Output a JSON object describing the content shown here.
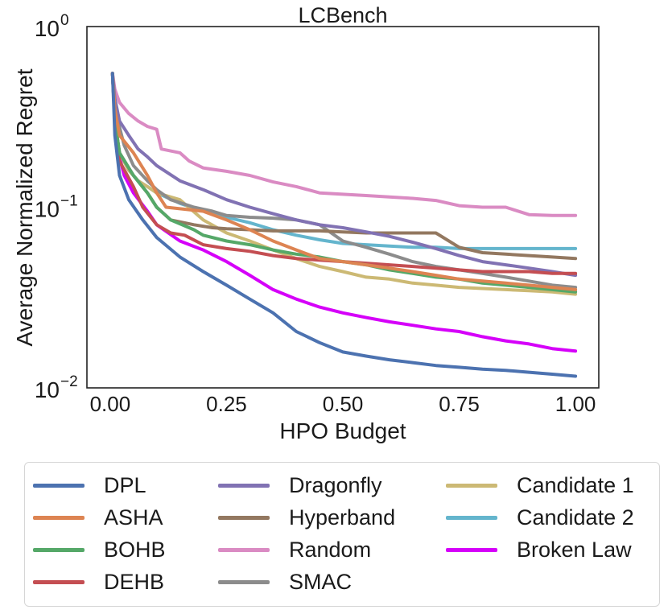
{
  "chart_data": {
    "type": "line",
    "title": "LCBench",
    "xlabel": "HPO Budget",
    "ylabel": "Average Normalized Regret",
    "xlim": [
      -0.05,
      1.05
    ],
    "ylim": [
      0.01,
      1
    ],
    "yscale": "log",
    "xticks": [
      0.0,
      0.25,
      0.5,
      0.75,
      1.0
    ],
    "xtick_labels": [
      "0.00",
      "0.25",
      "0.50",
      "0.75",
      "1.00"
    ],
    "ytick_labels": [
      {
        "value": 1,
        "base": "10",
        "exp": "0"
      },
      {
        "value": 0.1,
        "base": "10",
        "exp": "−1"
      },
      {
        "value": 0.01,
        "base": "10",
        "exp": "−2"
      }
    ],
    "grid": false,
    "legend_position": "below",
    "series": [
      {
        "name": "DPL",
        "color": "#4C72B0",
        "points": [
          [
            0.005,
            0.55
          ],
          [
            0.01,
            0.25
          ],
          [
            0.02,
            0.15
          ],
          [
            0.04,
            0.11
          ],
          [
            0.07,
            0.085
          ],
          [
            0.1,
            0.068
          ],
          [
            0.15,
            0.053
          ],
          [
            0.2,
            0.044
          ],
          [
            0.25,
            0.037
          ],
          [
            0.3,
            0.031
          ],
          [
            0.35,
            0.026
          ],
          [
            0.4,
            0.0205
          ],
          [
            0.45,
            0.0178
          ],
          [
            0.5,
            0.0158
          ],
          [
            0.55,
            0.015
          ],
          [
            0.6,
            0.0143
          ],
          [
            0.65,
            0.0138
          ],
          [
            0.7,
            0.0133
          ],
          [
            0.75,
            0.013
          ],
          [
            0.8,
            0.0127
          ],
          [
            0.85,
            0.0125
          ],
          [
            0.9,
            0.0122
          ],
          [
            0.95,
            0.0119
          ],
          [
            1.0,
            0.0116
          ]
        ]
      },
      {
        "name": "ASHA",
        "color": "#DD8452",
        "points": [
          [
            0.005,
            0.55
          ],
          [
            0.01,
            0.35
          ],
          [
            0.02,
            0.25
          ],
          [
            0.05,
            0.2
          ],
          [
            0.08,
            0.15
          ],
          [
            0.1,
            0.12
          ],
          [
            0.12,
            0.1
          ],
          [
            0.2,
            0.095
          ],
          [
            0.25,
            0.085
          ],
          [
            0.3,
            0.075
          ],
          [
            0.35,
            0.065
          ],
          [
            0.4,
            0.058
          ],
          [
            0.45,
            0.052
          ],
          [
            0.5,
            0.05
          ],
          [
            0.55,
            0.048
          ],
          [
            0.6,
            0.046
          ],
          [
            0.65,
            0.044
          ],
          [
            0.7,
            0.042
          ],
          [
            0.75,
            0.04
          ],
          [
            0.8,
            0.039
          ],
          [
            0.85,
            0.038
          ],
          [
            0.9,
            0.037
          ],
          [
            0.95,
            0.036
          ],
          [
            1.0,
            0.035
          ]
        ]
      },
      {
        "name": "BOHB",
        "color": "#55A868",
        "points": [
          [
            0.005,
            0.55
          ],
          [
            0.01,
            0.3
          ],
          [
            0.02,
            0.2
          ],
          [
            0.05,
            0.15
          ],
          [
            0.08,
            0.12
          ],
          [
            0.1,
            0.1
          ],
          [
            0.13,
            0.085
          ],
          [
            0.18,
            0.075
          ],
          [
            0.2,
            0.07
          ],
          [
            0.25,
            0.065
          ],
          [
            0.3,
            0.062
          ],
          [
            0.35,
            0.058
          ],
          [
            0.4,
            0.055
          ],
          [
            0.45,
            0.053
          ],
          [
            0.5,
            0.05
          ],
          [
            0.55,
            0.048
          ],
          [
            0.6,
            0.045
          ],
          [
            0.65,
            0.043
          ],
          [
            0.7,
            0.041
          ],
          [
            0.75,
            0.04
          ],
          [
            0.8,
            0.038
          ],
          [
            0.85,
            0.037
          ],
          [
            0.9,
            0.036
          ],
          [
            0.95,
            0.035
          ],
          [
            1.0,
            0.034
          ]
        ]
      },
      {
        "name": "DEHB",
        "color": "#C44E52",
        "points": [
          [
            0.005,
            0.55
          ],
          [
            0.01,
            0.3
          ],
          [
            0.02,
            0.18
          ],
          [
            0.05,
            0.13
          ],
          [
            0.07,
            0.1
          ],
          [
            0.1,
            0.08
          ],
          [
            0.13,
            0.072
          ],
          [
            0.16,
            0.07
          ],
          [
            0.2,
            0.062
          ],
          [
            0.25,
            0.059
          ],
          [
            0.3,
            0.057
          ],
          [
            0.35,
            0.054
          ],
          [
            0.4,
            0.052
          ],
          [
            0.45,
            0.051
          ],
          [
            0.5,
            0.05
          ],
          [
            0.55,
            0.049
          ],
          [
            0.6,
            0.048
          ],
          [
            0.65,
            0.047
          ],
          [
            0.7,
            0.046
          ],
          [
            0.75,
            0.045
          ],
          [
            0.8,
            0.044
          ],
          [
            0.85,
            0.044
          ],
          [
            0.9,
            0.044
          ],
          [
            0.95,
            0.043
          ],
          [
            1.0,
            0.043
          ]
        ]
      },
      {
        "name": "Dragonfly",
        "color": "#8172B3",
        "points": [
          [
            0.005,
            0.55
          ],
          [
            0.01,
            0.4
          ],
          [
            0.02,
            0.3
          ],
          [
            0.04,
            0.25
          ],
          [
            0.06,
            0.21
          ],
          [
            0.08,
            0.19
          ],
          [
            0.1,
            0.17
          ],
          [
            0.15,
            0.14
          ],
          [
            0.2,
            0.125
          ],
          [
            0.25,
            0.11
          ],
          [
            0.3,
            0.1
          ],
          [
            0.35,
            0.092
          ],
          [
            0.4,
            0.085
          ],
          [
            0.45,
            0.08
          ],
          [
            0.5,
            0.077
          ],
          [
            0.55,
            0.073
          ],
          [
            0.6,
            0.069
          ],
          [
            0.65,
            0.064
          ],
          [
            0.7,
            0.059
          ],
          [
            0.75,
            0.054
          ],
          [
            0.8,
            0.05
          ],
          [
            0.85,
            0.048
          ],
          [
            0.9,
            0.046
          ],
          [
            0.95,
            0.044
          ],
          [
            1.0,
            0.042
          ]
        ]
      },
      {
        "name": "Hyperband",
        "color": "#937860",
        "points": [
          [
            0.005,
            0.55
          ],
          [
            0.01,
            0.3
          ],
          [
            0.02,
            0.2
          ],
          [
            0.05,
            0.15
          ],
          [
            0.08,
            0.12
          ],
          [
            0.1,
            0.1
          ],
          [
            0.13,
            0.085
          ],
          [
            0.18,
            0.08
          ],
          [
            0.22,
            0.077
          ],
          [
            0.25,
            0.076
          ],
          [
            0.3,
            0.075
          ],
          [
            0.35,
            0.074
          ],
          [
            0.4,
            0.074
          ],
          [
            0.45,
            0.074
          ],
          [
            0.5,
            0.073
          ],
          [
            0.55,
            0.072
          ],
          [
            0.6,
            0.072
          ],
          [
            0.65,
            0.072
          ],
          [
            0.7,
            0.072
          ],
          [
            0.75,
            0.06
          ],
          [
            0.8,
            0.056
          ],
          [
            0.85,
            0.055
          ],
          [
            0.9,
            0.054
          ],
          [
            0.95,
            0.053
          ],
          [
            1.0,
            0.052
          ]
        ]
      },
      {
        "name": "Random",
        "color": "#DA8BC3",
        "points": [
          [
            0.005,
            0.55
          ],
          [
            0.01,
            0.45
          ],
          [
            0.02,
            0.38
          ],
          [
            0.04,
            0.33
          ],
          [
            0.06,
            0.3
          ],
          [
            0.08,
            0.28
          ],
          [
            0.1,
            0.27
          ],
          [
            0.11,
            0.21
          ],
          [
            0.15,
            0.2
          ],
          [
            0.17,
            0.18
          ],
          [
            0.2,
            0.165
          ],
          [
            0.25,
            0.158
          ],
          [
            0.3,
            0.15
          ],
          [
            0.35,
            0.138
          ],
          [
            0.4,
            0.13
          ],
          [
            0.45,
            0.12
          ],
          [
            0.5,
            0.118
          ],
          [
            0.55,
            0.116
          ],
          [
            0.6,
            0.114
          ],
          [
            0.65,
            0.112
          ],
          [
            0.7,
            0.109
          ],
          [
            0.75,
            0.102
          ],
          [
            0.8,
            0.1
          ],
          [
            0.85,
            0.1
          ],
          [
            0.9,
            0.091
          ],
          [
            0.95,
            0.09
          ],
          [
            1.0,
            0.09
          ]
        ]
      },
      {
        "name": "SMAC",
        "color": "#8C8C8C",
        "points": [
          [
            0.005,
            0.55
          ],
          [
            0.01,
            0.35
          ],
          [
            0.03,
            0.22
          ],
          [
            0.05,
            0.17
          ],
          [
            0.08,
            0.14
          ],
          [
            0.1,
            0.125
          ],
          [
            0.13,
            0.11
          ],
          [
            0.18,
            0.1
          ],
          [
            0.22,
            0.095
          ],
          [
            0.25,
            0.09
          ],
          [
            0.3,
            0.088
          ],
          [
            0.35,
            0.087
          ],
          [
            0.4,
            0.085
          ],
          [
            0.45,
            0.08
          ],
          [
            0.5,
            0.065
          ],
          [
            0.55,
            0.06
          ],
          [
            0.6,
            0.055
          ],
          [
            0.65,
            0.05
          ],
          [
            0.7,
            0.047
          ],
          [
            0.75,
            0.045
          ],
          [
            0.8,
            0.043
          ],
          [
            0.85,
            0.041
          ],
          [
            0.9,
            0.039
          ],
          [
            0.95,
            0.037
          ],
          [
            1.0,
            0.036
          ]
        ]
      },
      {
        "name": "Candidate 1",
        "color": "#CCB974",
        "points": [
          [
            0.005,
            0.55
          ],
          [
            0.01,
            0.3
          ],
          [
            0.02,
            0.2
          ],
          [
            0.04,
            0.16
          ],
          [
            0.06,
            0.14
          ],
          [
            0.08,
            0.13
          ],
          [
            0.1,
            0.12
          ],
          [
            0.15,
            0.11
          ],
          [
            0.2,
            0.085
          ],
          [
            0.25,
            0.072
          ],
          [
            0.3,
            0.065
          ],
          [
            0.35,
            0.058
          ],
          [
            0.4,
            0.052
          ],
          [
            0.45,
            0.047
          ],
          [
            0.5,
            0.044
          ],
          [
            0.55,
            0.041
          ],
          [
            0.6,
            0.04
          ],
          [
            0.65,
            0.038
          ],
          [
            0.7,
            0.037
          ],
          [
            0.75,
            0.036
          ],
          [
            0.8,
            0.0355
          ],
          [
            0.85,
            0.035
          ],
          [
            0.9,
            0.0345
          ],
          [
            0.95,
            0.034
          ],
          [
            1.0,
            0.033
          ]
        ]
      },
      {
        "name": "Candidate 2",
        "color": "#64B5CD",
        "points": [
          [
            0.005,
            0.55
          ],
          [
            0.01,
            0.3
          ],
          [
            0.02,
            0.2
          ],
          [
            0.04,
            0.16
          ],
          [
            0.06,
            0.14
          ],
          [
            0.08,
            0.13
          ],
          [
            0.1,
            0.12
          ],
          [
            0.15,
            0.105
          ],
          [
            0.2,
            0.095
          ],
          [
            0.25,
            0.088
          ],
          [
            0.3,
            0.082
          ],
          [
            0.35,
            0.075
          ],
          [
            0.4,
            0.07
          ],
          [
            0.45,
            0.066
          ],
          [
            0.5,
            0.063
          ],
          [
            0.55,
            0.062
          ],
          [
            0.6,
            0.061
          ],
          [
            0.65,
            0.06
          ],
          [
            0.7,
            0.06
          ],
          [
            0.75,
            0.059
          ],
          [
            0.8,
            0.059
          ],
          [
            0.85,
            0.059
          ],
          [
            0.9,
            0.059
          ],
          [
            0.95,
            0.059
          ],
          [
            1.0,
            0.059
          ]
        ]
      },
      {
        "name": "Broken Law",
        "color": "#D500F9",
        "points": [
          [
            0.005,
            0.55
          ],
          [
            0.01,
            0.3
          ],
          [
            0.02,
            0.19
          ],
          [
            0.03,
            0.15
          ],
          [
            0.05,
            0.12
          ],
          [
            0.08,
            0.095
          ],
          [
            0.1,
            0.08
          ],
          [
            0.15,
            0.065
          ],
          [
            0.2,
            0.058
          ],
          [
            0.25,
            0.05
          ],
          [
            0.3,
            0.042
          ],
          [
            0.35,
            0.035
          ],
          [
            0.4,
            0.031
          ],
          [
            0.45,
            0.028
          ],
          [
            0.5,
            0.026
          ],
          [
            0.55,
            0.0245
          ],
          [
            0.6,
            0.0232
          ],
          [
            0.65,
            0.0222
          ],
          [
            0.7,
            0.0212
          ],
          [
            0.75,
            0.0205
          ],
          [
            0.8,
            0.0192
          ],
          [
            0.85,
            0.0182
          ],
          [
            0.9,
            0.0175
          ],
          [
            0.95,
            0.0165
          ],
          [
            1.0,
            0.016
          ]
        ]
      }
    ]
  }
}
